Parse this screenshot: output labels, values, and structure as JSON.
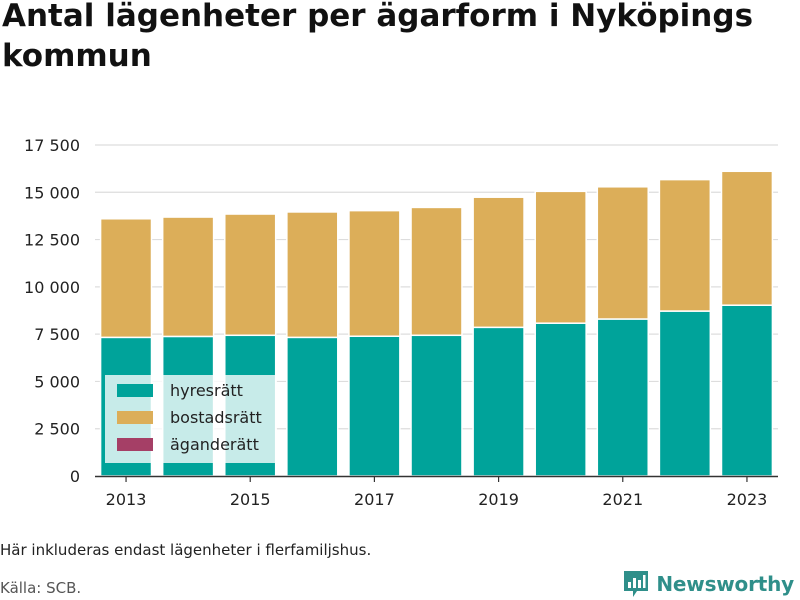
{
  "title": "Antal lägenheter per ägarform i Nyköpings kommun",
  "note": "Här inkluderas endast lägenheter i flerfamiljshus.",
  "source": "Källa: SCB.",
  "brand": {
    "name": "Newsworthy",
    "icon": "newsworthy-logo-icon",
    "color": "#2f8f8a"
  },
  "chart_data": {
    "type": "bar",
    "stacked": true,
    "categories": [
      "2013",
      "2014",
      "2015",
      "2016",
      "2017",
      "2018",
      "2019",
      "2020",
      "2021",
      "2022",
      "2023"
    ],
    "x_tick_labels": [
      "2013",
      "2015",
      "2017",
      "2019",
      "2021",
      "2023"
    ],
    "ylim": [
      0,
      17500
    ],
    "y_ticks": [
      0,
      2500,
      5000,
      7500,
      10000,
      12500,
      15000,
      17500
    ],
    "y_tick_labels": [
      "0",
      "2 500",
      "5 000",
      "7 500",
      "10 000",
      "12 500",
      "15 000",
      "17 500"
    ],
    "grid": true,
    "legend_position": "bottom-left",
    "series": [
      {
        "name": "hyresrätt",
        "color": "#00a39a",
        "values": [
          7330,
          7380,
          7440,
          7330,
          7390,
          7440,
          7860,
          8080,
          8300,
          8720,
          9030
        ]
      },
      {
        "name": "bostadsrätt",
        "color": "#dcae59",
        "values": [
          6270,
          6310,
          6410,
          6630,
          6640,
          6760,
          6880,
          6970,
          6990,
          6950,
          7080
        ]
      },
      {
        "name": "äganderätt",
        "color": "#a53f66",
        "values": [
          0,
          0,
          0,
          0,
          0,
          0,
          0,
          0,
          0,
          0,
          0
        ]
      }
    ]
  }
}
